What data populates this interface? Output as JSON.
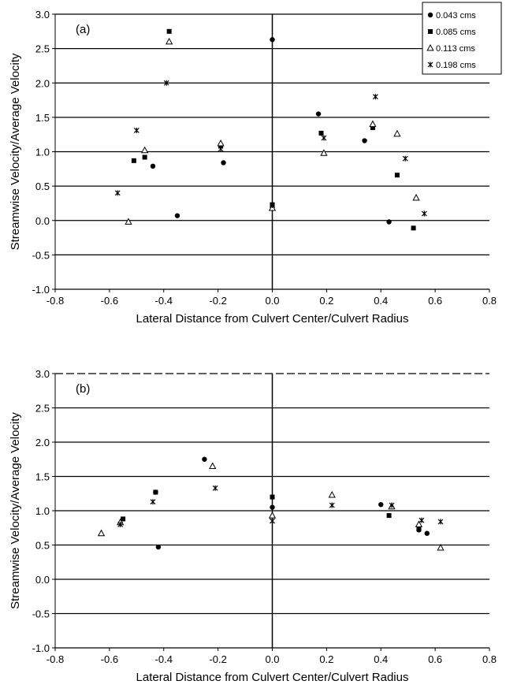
{
  "legend": [
    {
      "label": "0.043 cms",
      "marker": "circle"
    },
    {
      "label": "0.085 cms",
      "marker": "square"
    },
    {
      "label": "0.113 cms",
      "marker": "triangle"
    },
    {
      "label": "0.198 cms",
      "marker": "star"
    }
  ],
  "chart_data": [
    {
      "type": "scatter",
      "panel_label": "(a)",
      "xlabel": "Lateral Distance from Culvert Center/Culvert Radius",
      "ylabel": "Streamwise Velocity/Average Velocity",
      "xlim": [
        -0.8,
        0.8
      ],
      "ylim": [
        -1.0,
        3.0
      ],
      "x_ticks": [
        "-0.8",
        "-0.6",
        "-0.4",
        "-0.2",
        "0.0",
        "0.2",
        "0.4",
        "0.6",
        "0.8"
      ],
      "y_ticks": [
        "-1.0",
        "-0.5",
        "0.0",
        "0.5",
        "1.0",
        "1.5",
        "2.0",
        "2.5",
        "3.0"
      ],
      "grid": "horizontal",
      "legend_position": "top-right",
      "series": [
        {
          "name": "0.043 cms",
          "marker": "circle",
          "points": [
            [
              -0.44,
              0.79
            ],
            [
              -0.35,
              0.07
            ],
            [
              -0.18,
              0.84
            ],
            [
              0.0,
              2.63
            ],
            [
              0.17,
              1.55
            ],
            [
              0.34,
              1.16
            ],
            [
              0.43,
              -0.02
            ]
          ]
        },
        {
          "name": "0.085 cms",
          "marker": "square",
          "points": [
            [
              -0.51,
              0.87
            ],
            [
              -0.47,
              0.92
            ],
            [
              -0.38,
              2.75
            ],
            [
              -0.19,
              1.08
            ],
            [
              0.0,
              0.23
            ],
            [
              0.18,
              1.27
            ],
            [
              0.37,
              1.35
            ],
            [
              0.46,
              0.66
            ],
            [
              0.52,
              -0.11
            ]
          ]
        },
        {
          "name": "0.113 cms",
          "marker": "triangle",
          "points": [
            [
              -0.53,
              -0.02
            ],
            [
              -0.47,
              1.02
            ],
            [
              -0.38,
              2.6
            ],
            [
              -0.19,
              1.12
            ],
            [
              0.0,
              0.18
            ],
            [
              0.19,
              0.98
            ],
            [
              0.37,
              1.4
            ],
            [
              0.46,
              1.26
            ],
            [
              0.53,
              0.33
            ]
          ]
        },
        {
          "name": "0.198 cms",
          "marker": "star",
          "points": [
            [
              -0.57,
              0.4
            ],
            [
              -0.5,
              1.31
            ],
            [
              -0.39,
              2.0
            ],
            [
              -0.19,
              1.04
            ],
            [
              0.0,
              0.22
            ],
            [
              0.19,
              1.2
            ],
            [
              0.38,
              1.8
            ],
            [
              0.49,
              0.9
            ],
            [
              0.56,
              0.1
            ]
          ]
        }
      ]
    },
    {
      "type": "scatter",
      "panel_label": "(b)",
      "xlabel": "Lateral Distance from Culvert Center/Culvert Radius",
      "ylabel": "Streamwise Velocity/Average Velocity",
      "xlim": [
        -0.8,
        0.8
      ],
      "ylim": [
        -1.0,
        3.0
      ],
      "x_ticks": [
        "-0.8",
        "-0.6",
        "-0.4",
        "-0.2",
        "0.0",
        "0.2",
        "0.4",
        "0.6",
        "0.8"
      ],
      "y_ticks": [
        "-1.0",
        "-0.5",
        "0.0",
        "0.5",
        "1.0",
        "1.5",
        "2.0",
        "2.5",
        "3.0"
      ],
      "grid": "horizontal",
      "series": [
        {
          "name": "0.043 cms",
          "marker": "circle",
          "points": [
            [
              -0.43,
              1.27
            ],
            [
              -0.42,
              0.47
            ],
            [
              -0.25,
              1.75
            ],
            [
              0.0,
              1.05
            ],
            [
              0.4,
              1.09
            ],
            [
              0.54,
              0.72
            ],
            [
              0.57,
              0.67
            ]
          ]
        },
        {
          "name": "0.085 cms",
          "marker": "square",
          "points": [
            [
              -0.55,
              0.88
            ],
            [
              -0.43,
              1.27
            ],
            [
              0.0,
              1.2
            ],
            [
              0.43,
              0.93
            ],
            [
              0.54,
              0.73
            ]
          ]
        },
        {
          "name": "0.113 cms",
          "marker": "triangle",
          "points": [
            [
              -0.63,
              0.67
            ],
            [
              -0.56,
              0.83
            ],
            [
              -0.22,
              1.65
            ],
            [
              0.0,
              0.93
            ],
            [
              0.22,
              1.23
            ],
            [
              0.44,
              1.06
            ],
            [
              0.54,
              0.8
            ],
            [
              0.62,
              0.46
            ]
          ]
        },
        {
          "name": "0.198 cms",
          "marker": "star",
          "points": [
            [
              -0.56,
              0.8
            ],
            [
              -0.44,
              1.13
            ],
            [
              -0.21,
              1.33
            ],
            [
              0.0,
              0.85
            ],
            [
              0.22,
              1.08
            ],
            [
              0.44,
              1.08
            ],
            [
              0.55,
              0.86
            ],
            [
              0.62,
              0.84
            ]
          ]
        }
      ]
    }
  ]
}
